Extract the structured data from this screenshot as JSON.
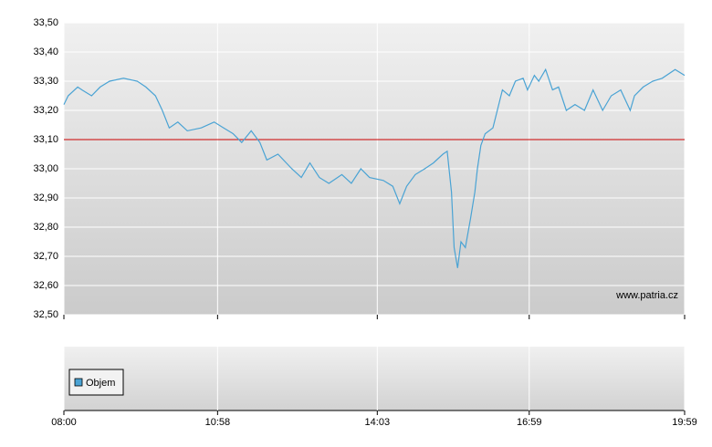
{
  "chart_data": {
    "type": "line",
    "x": [
      "08:00",
      "08:05",
      "08:16",
      "08:21",
      "08:32",
      "08:42",
      "08:53",
      "09:09",
      "09:25",
      "09:35",
      "09:46",
      "09:54",
      "10:02",
      "10:12",
      "10:23",
      "10:39",
      "10:54",
      "11:05",
      "11:16",
      "11:26",
      "11:37",
      "11:47",
      "11:55",
      "12:08",
      "12:24",
      "12:35",
      "12:45",
      "12:56",
      "13:07",
      "13:22",
      "13:33",
      "13:44",
      "13:54",
      "14:10",
      "14:21",
      "14:29",
      "14:37",
      "14:47",
      "14:58",
      "15:08",
      "15:19",
      "15:24",
      "15:29",
      "15:32",
      "15:36",
      "15:40",
      "15:45",
      "15:51",
      "15:56",
      "15:59",
      "16:03",
      "16:08",
      "16:17",
      "16:22",
      "16:28",
      "16:36",
      "16:43",
      "16:52",
      "16:57",
      "17:05",
      "17:10",
      "17:18",
      "17:26",
      "17:33",
      "17:42",
      "17:52",
      "18:03",
      "18:13",
      "18:24",
      "18:34",
      "18:45",
      "18:56",
      "19:01",
      "19:11",
      "19:22",
      "19:33",
      "19:48",
      "19:59"
    ],
    "series": [
      {
        "color": "#4aa3d4",
        "values": [
          33.22,
          33.25,
          33.28,
          33.27,
          33.25,
          33.28,
          33.3,
          33.31,
          33.3,
          33.28,
          33.25,
          33.2,
          33.14,
          33.16,
          33.13,
          33.14,
          33.16,
          33.14,
          33.12,
          33.09,
          33.13,
          33.09,
          33.03,
          33.05,
          33.0,
          32.97,
          33.02,
          32.97,
          32.95,
          32.98,
          32.95,
          33.0,
          32.97,
          32.96,
          32.94,
          32.88,
          32.94,
          32.98,
          33.0,
          33.02,
          33.05,
          33.06,
          32.92,
          32.73,
          32.66,
          32.75,
          32.73,
          32.83,
          32.92,
          33.0,
          33.08,
          33.12,
          33.14,
          33.2,
          33.27,
          33.25,
          33.3,
          33.31,
          33.27,
          33.32,
          33.3,
          33.34,
          33.27,
          33.28,
          33.2,
          33.22,
          33.2,
          33.27,
          33.2,
          33.25,
          33.27,
          33.2,
          33.25,
          33.28,
          33.3,
          33.31,
          33.34,
          33.32
        ]
      }
    ],
    "xlim": [
      "08:00",
      "19:59"
    ],
    "xticks": [
      "08:00",
      "10:58",
      "14:03",
      "16:59",
      "19:59"
    ],
    "ylim": [
      32.5,
      33.5
    ],
    "yticks": [
      {
        "value": 32.5,
        "label": "32,50"
      },
      {
        "value": 32.6,
        "label": "32,60"
      },
      {
        "value": 32.7,
        "label": "32,70"
      },
      {
        "value": 32.8,
        "label": "32,80"
      },
      {
        "value": 32.9,
        "label": "32,90"
      },
      {
        "value": 33.0,
        "label": "33,00"
      },
      {
        "value": 33.1,
        "label": "33,10"
      },
      {
        "value": 33.2,
        "label": "33,20"
      },
      {
        "value": 33.3,
        "label": "33,30"
      },
      {
        "value": 33.4,
        "label": "33,40"
      },
      {
        "value": 33.5,
        "label": "33,50"
      }
    ],
    "grid": true,
    "reference_line": {
      "value": 33.1,
      "color": "#cc0000"
    },
    "watermark": "www.patria.cz",
    "volume_legend": {
      "name": "Objem",
      "color": "#4aa3d4"
    }
  }
}
